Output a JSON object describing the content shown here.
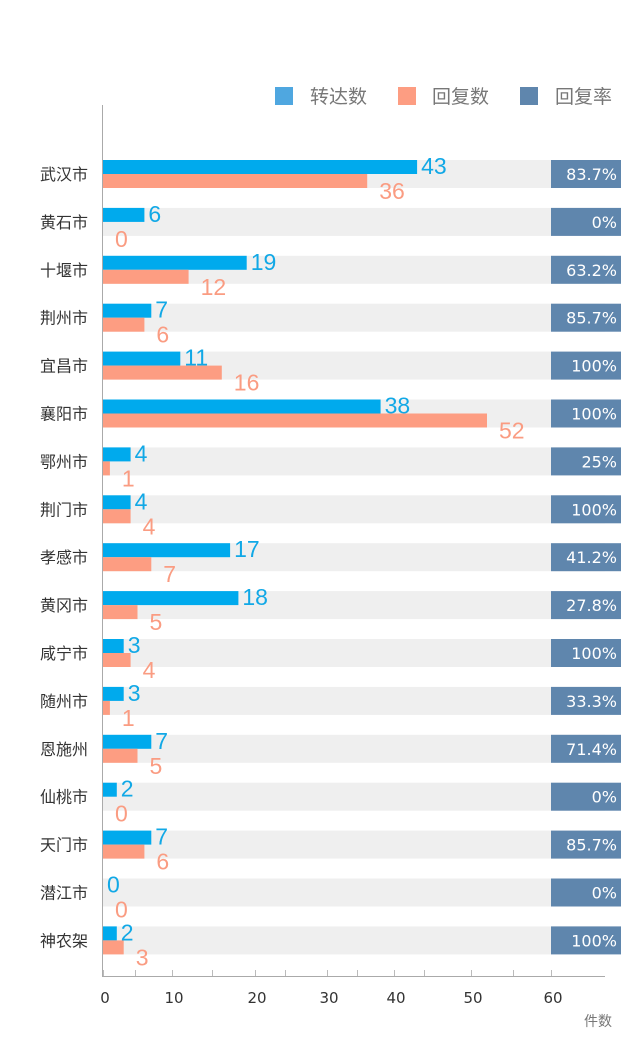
{
  "colors": {
    "forward": "#00aaed",
    "reply": "#fd9d82",
    "rate": "#5f86ad",
    "row_bg": "#efefef",
    "legend_forward": "#4fa7e0",
    "legend_reply": "#fd9d82",
    "legend_rate": "#5f86ad"
  },
  "chart_data": {
    "type": "bar",
    "orientation": "horizontal",
    "categories": [
      "武汉市",
      "黄石市",
      "十堰市",
      "荆州市",
      "宜昌市",
      "襄阳市",
      "鄂州市",
      "荆门市",
      "孝感市",
      "黄冈市",
      "咸宁市",
      "随州市",
      "恩施州",
      "仙桃市",
      "天门市",
      "潜江市",
      "神农架"
    ],
    "series": [
      {
        "name": "转达数",
        "values": [
          43,
          6,
          19,
          7,
          11,
          38,
          4,
          4,
          17,
          18,
          3,
          3,
          7,
          2,
          7,
          0,
          2
        ]
      },
      {
        "name": "回复数",
        "values": [
          36,
          0,
          12,
          6,
          16,
          52,
          1,
          4,
          7,
          5,
          4,
          1,
          5,
          0,
          6,
          0,
          3
        ]
      },
      {
        "name": "回复率",
        "values": [
          "83.7%",
          "0%",
          "63.2%",
          "85.7%",
          "100%",
          "100%",
          "25%",
          "100%",
          "41.2%",
          "27.8%",
          "100%",
          "33.3%",
          "71.4%",
          "0%",
          "85.7%",
          "0%",
          "100%"
        ]
      }
    ],
    "legend": [
      "转达数",
      "回复数",
      "回复率"
    ],
    "legend_position": "top-right",
    "x_ticks": [
      "0",
      "10",
      "20",
      "30",
      "40",
      "50",
      "60"
    ],
    "x_tick_values": [
      0,
      10,
      20,
      30,
      40,
      50,
      60
    ],
    "xlim": [
      0,
      66
    ],
    "xlabel": "件数",
    "ylabel": "",
    "title": ""
  }
}
